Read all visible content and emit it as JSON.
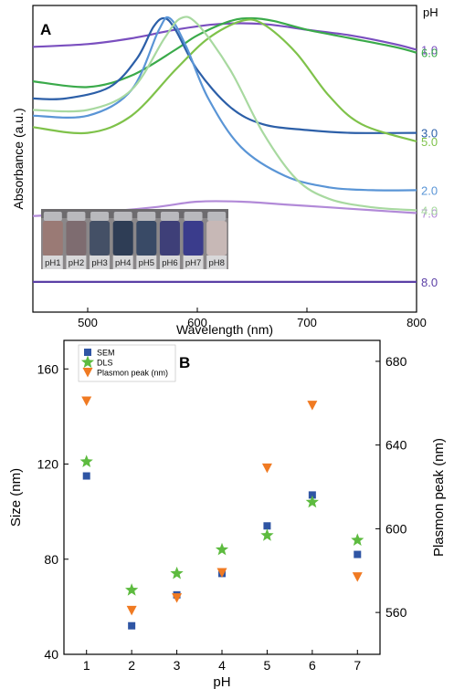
{
  "chart_data": [
    {
      "panel_label": "A",
      "type": "line",
      "xlabel": "Wavelength (nm)",
      "ylabel": "Absorbance (a.u.)",
      "xlim": [
        450,
        800
      ],
      "xticks": [
        "500",
        "600",
        "700",
        "800"
      ],
      "legend_title": "pH",
      "series": [
        {
          "name": "1.0",
          "color": "#7a4fbf",
          "x": [
            450,
            500,
            540,
            580,
            620,
            660,
            700,
            740,
            780,
            800
          ],
          "y": [
            0.9,
            0.91,
            0.93,
            0.96,
            0.98,
            0.98,
            0.96,
            0.94,
            0.91,
            0.89
          ]
        },
        {
          "name": "6.0",
          "color": "#3aaa4a",
          "x": [
            450,
            500,
            540,
            580,
            600,
            630,
            650,
            670,
            700,
            740,
            780,
            800
          ],
          "y": [
            0.78,
            0.76,
            0.8,
            0.89,
            0.94,
            0.99,
            1.0,
            0.99,
            0.96,
            0.93,
            0.9,
            0.88
          ]
        },
        {
          "name": "3.0",
          "color": "#2c5fa8",
          "x": [
            450,
            480,
            520,
            545,
            560,
            570,
            580,
            600,
            630,
            660,
            700,
            740,
            800
          ],
          "y": [
            0.72,
            0.72,
            0.76,
            0.86,
            0.97,
            1.0,
            0.96,
            0.82,
            0.69,
            0.63,
            0.61,
            0.6,
            0.6
          ]
        },
        {
          "name": "5.0",
          "color": "#7fc24a",
          "x": [
            450,
            500,
            540,
            580,
            610,
            640,
            660,
            690,
            720,
            750,
            800
          ],
          "y": [
            0.62,
            0.6,
            0.66,
            0.82,
            0.93,
            0.99,
            0.98,
            0.88,
            0.73,
            0.63,
            0.57
          ]
        },
        {
          "name": "2.0",
          "color": "#5a95d6",
          "x": [
            450,
            500,
            540,
            565,
            575,
            590,
            610,
            640,
            680,
            720,
            760,
            800
          ],
          "y": [
            0.66,
            0.66,
            0.75,
            0.96,
            1.0,
            0.9,
            0.72,
            0.55,
            0.45,
            0.41,
            0.4,
            0.4
          ]
        },
        {
          "name": "7.0",
          "color": "#b28ad8",
          "x": [
            450,
            500,
            560,
            600,
            640,
            680,
            720,
            760,
            800
          ],
          "y": [
            0.31,
            0.32,
            0.34,
            0.36,
            0.36,
            0.35,
            0.34,
            0.33,
            0.32
          ]
        },
        {
          "name": "4.0",
          "color": "#a8d9a0",
          "x": [
            450,
            500,
            540,
            570,
            585,
            600,
            630,
            660,
            690,
            720,
            760,
            800
          ],
          "y": [
            0.68,
            0.68,
            0.75,
            0.93,
            1.0,
            0.98,
            0.82,
            0.6,
            0.44,
            0.37,
            0.34,
            0.33
          ]
        },
        {
          "name": "8.0",
          "color": "#5b3fa6",
          "x": [
            450,
            550,
            650,
            750,
            800
          ],
          "y": [
            0.08,
            0.08,
            0.08,
            0.08,
            0.08
          ]
        }
      ],
      "inset": {
        "labels": [
          "pH1",
          "pH2",
          "pH3",
          "pH4",
          "pH5",
          "pH6",
          "pH7",
          "pH8"
        ],
        "colors": [
          "#9a7a75",
          "#7e6c70",
          "#445066",
          "#2e3d55",
          "#394a66",
          "#3e3f78",
          "#3a3c8c",
          "#c7b8b6"
        ]
      }
    },
    {
      "panel_label": "B",
      "type": "scatter",
      "xlabel": "pH",
      "ylabel": "Size (nm)",
      "ylabel_right": "Plasmon peak (nm)",
      "x": [
        1,
        2,
        3,
        4,
        5,
        6,
        7
      ],
      "xlim": [
        0.5,
        7.5
      ],
      "ylim": [
        40,
        172
      ],
      "ylim_right": [
        540,
        690
      ],
      "yticks": [
        "40",
        "80",
        "120",
        "160"
      ],
      "yticks_right": [
        "560",
        "600",
        "640",
        "680"
      ],
      "legend_position": "top-left",
      "series": [
        {
          "name": "SEM",
          "axis": "left",
          "marker": "square",
          "color": "#2f55a4",
          "values": [
            115,
            52,
            65,
            74,
            94,
            107,
            82
          ]
        },
        {
          "name": "DLS",
          "axis": "left",
          "marker": "star",
          "color": "#5dbb3f",
          "values": [
            121,
            67,
            74,
            84,
            90,
            104,
            88
          ]
        },
        {
          "name": "Plasmon peak (nm)",
          "axis": "right",
          "marker": "triangle-down",
          "color": "#f07a22",
          "values": [
            661,
            561,
            567,
            579,
            629,
            659,
            577
          ]
        }
      ]
    }
  ]
}
